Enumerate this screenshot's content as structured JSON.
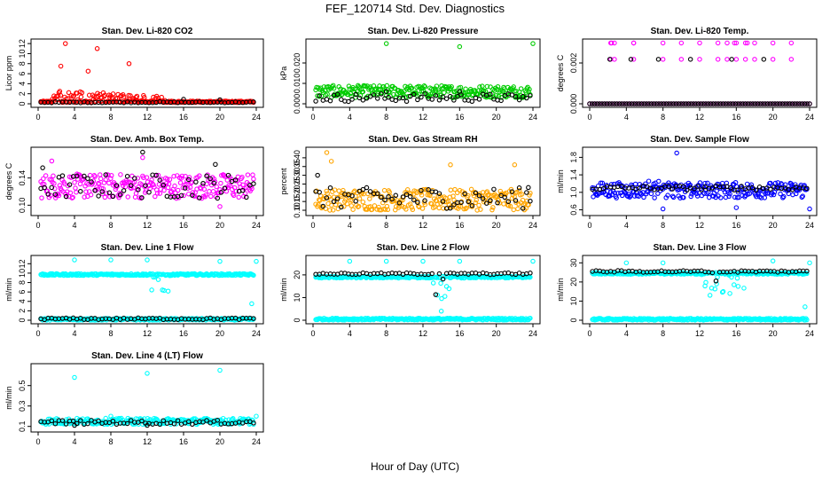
{
  "figure": {
    "title": "FEF_120714  Std. Dev. Diagnostics",
    "xlabel": "Hour of Day (UTC)"
  },
  "chart_data": [
    {
      "type": "scatter",
      "title": "Stan. Dev. Li-820 CO2",
      "xlabel": "",
      "ylabel": "Licor ppm",
      "xlim": [
        0,
        24
      ],
      "ylim": [
        0,
        12.2
      ],
      "xticks": [
        "0",
        "4",
        "8",
        "12",
        "16",
        "20",
        "24"
      ],
      "yticks": [
        "0",
        "2",
        "4",
        "6",
        "8",
        "10",
        "12"
      ],
      "series": [
        {
          "color": "#ff0000",
          "base": 0.4,
          "spread": 0.15,
          "bump": {
            "from": 1.5,
            "to": 14,
            "level": 2.0,
            "scatter": 2.5
          },
          "outliers": [
            [
              3,
              12
            ],
            [
              6.5,
              11
            ],
            [
              2.5,
              7.5
            ],
            [
              10,
              8
            ],
            [
              5.5,
              6.5
            ]
          ]
        },
        {
          "color": "#000000",
          "base": 0.3,
          "spread": 0.1,
          "outliers": [
            [
              16,
              0.9
            ],
            [
              20,
              0.8
            ]
          ]
        }
      ]
    },
    {
      "type": "scatter",
      "title": "Stan. Dev. Li-820 Pressure",
      "xlabel": "",
      "ylabel": "kPa",
      "xlim": [
        0,
        24
      ],
      "ylim": [
        0,
        0.03
      ],
      "xticks": [
        "0",
        "4",
        "8",
        "12",
        "16",
        "20",
        "24"
      ],
      "yticks": [
        "0.000",
        "0.010",
        "0.020"
      ],
      "series": [
        {
          "color": "#00cc00",
          "base": 0.006,
          "spread": 0.003,
          "outliers": [
            [
              8,
              0.0295
            ],
            [
              16,
              0.028
            ],
            [
              24,
              0.0295
            ]
          ]
        },
        {
          "color": "#000000",
          "base": 0.003,
          "spread": 0.002,
          "outliers": [
            [
              8,
              0.006
            ],
            [
              16,
              0.006
            ]
          ]
        }
      ]
    },
    {
      "type": "scatter",
      "title": "Stan. Dev. Li-820 Temp.",
      "xlabel": "",
      "ylabel": "degrees C",
      "xlim": [
        0,
        24
      ],
      "ylim": [
        0,
        0.003
      ],
      "xticks": [
        "0",
        "4",
        "8",
        "12",
        "16",
        "20",
        "24"
      ],
      "yticks": [
        "0.000",
        "0.002"
      ],
      "series": [
        {
          "color": "#ff00ff",
          "levels": [
            0,
            0.00218,
            0.00298
          ],
          "points_x": [
            2.3,
            2.7,
            4.8,
            8,
            10,
            12,
            14,
            15,
            16,
            17,
            18,
            20,
            22
          ],
          "outliers": [
            [
              2.4,
              0.00298
            ],
            [
              4.8,
              0.00298
            ],
            [
              15.8,
              0.00298
            ],
            [
              17.2,
              0.00298
            ]
          ]
        },
        {
          "color": "#000000",
          "levels": [
            0,
            0.00218
          ],
          "points_x": [
            2.2,
            4.5,
            7.5,
            11,
            15.5,
            19
          ],
          "outliers": []
        }
      ]
    },
    {
      "type": "scatter",
      "title": "Stan. Dev. Amb. Box Temp.",
      "xlabel": "",
      "ylabel": "degrees C",
      "xlim": [
        0,
        24
      ],
      "ylim": [
        0.09,
        0.18
      ],
      "xticks": [
        "0",
        "4",
        "8",
        "12",
        "16",
        "20",
        "24"
      ],
      "yticks": [
        "0.10",
        "0.14"
      ],
      "series": [
        {
          "color": "#ff00ff",
          "base": 0.128,
          "spread": 0.018,
          "outliers": [
            [
              11.5,
              0.17
            ],
            [
              1.5,
              0.165
            ],
            [
              20,
              0.098
            ]
          ]
        },
        {
          "color": "#000000",
          "base": 0.128,
          "spread": 0.018,
          "outliers": [
            [
              11.5,
              0.178
            ],
            [
              19.5,
              0.16
            ],
            [
              0.5,
              0.155
            ]
          ]
        }
      ]
    },
    {
      "type": "scatter",
      "title": "Stan. Dev. Gas Stream RH",
      "xlabel": "",
      "ylabel": "percent",
      "xlim": [
        0,
        24
      ],
      "ylim": [
        0.09,
        0.44
      ],
      "xticks": [
        "0",
        "4",
        "8",
        "12",
        "16",
        "20",
        "24"
      ],
      "yticks": [
        "0.10",
        "0.15",
        "0.20",
        "0.25",
        "0.30",
        "0.35",
        "0.40"
      ],
      "series": [
        {
          "color": "#ffa500",
          "base": 0.16,
          "spread": 0.06,
          "outliers": [
            [
              1.5,
              0.43
            ],
            [
              2,
              0.38
            ],
            [
              15,
              0.36
            ],
            [
              22,
              0.36
            ]
          ]
        },
        {
          "color": "#000000",
          "base": 0.17,
          "spread": 0.06,
          "outliers": [
            [
              0.5,
              0.3
            ],
            [
              23.5,
              0.23
            ]
          ]
        }
      ]
    },
    {
      "type": "scatter",
      "title": "Stan. Dev. Sample Flow",
      "xlabel": "",
      "ylabel": "ml/min",
      "xlim": [
        0,
        24
      ],
      "ylim": [
        0.55,
        1.95
      ],
      "xticks": [
        "0",
        "4",
        "8",
        "12",
        "16",
        "20",
        "24"
      ],
      "yticks": [
        "0.6",
        "1.0",
        "1.4",
        "1.8"
      ],
      "series": [
        {
          "color": "#0000ff",
          "base": 1.05,
          "spread": 0.18,
          "bump": {
            "from": 6,
            "to": 11,
            "level": 1.45,
            "scatter": 0.25
          },
          "outliers": [
            [
              9.5,
              1.9
            ],
            [
              8,
              0.62
            ],
            [
              24,
              0.62
            ],
            [
              16,
              0.65
            ]
          ]
        },
        {
          "color": "#000000",
          "base": 1.1,
          "spread": 0.05,
          "outliers": []
        }
      ]
    },
    {
      "type": "scatter",
      "title": "Stan. Dev. Line 1 Flow",
      "xlabel": "",
      "ylabel": "ml/min",
      "xlim": [
        0,
        24
      ],
      "ylim": [
        0,
        13
      ],
      "xticks": [
        "0",
        "4",
        "8",
        "12",
        "16",
        "20",
        "24"
      ],
      "yticks": [
        "0",
        "2",
        "4",
        "6",
        "8",
        "10",
        "12"
      ],
      "series": [
        {
          "color": "#00ffff",
          "levels": [
            9.7,
            0.2
          ],
          "dip": {
            "from": 12,
            "to": 15,
            "level": 6
          },
          "outliers": [
            [
              4,
              12.8
            ],
            [
              8,
              12.8
            ],
            [
              12,
              12.8
            ],
            [
              20,
              12.5
            ],
            [
              24,
              12.5
            ],
            [
              23.5,
              3.5
            ]
          ]
        },
        {
          "color": "#000000",
          "levels": [
            0.3
          ],
          "outliers": []
        }
      ]
    },
    {
      "type": "scatter",
      "title": "Stan. Dev. Line 2 Flow",
      "xlabel": "",
      "ylabel": "ml/min",
      "xlim": [
        0,
        24
      ],
      "ylim": [
        0,
        27
      ],
      "xticks": [
        "0",
        "4",
        "8",
        "12",
        "16",
        "20",
        "24"
      ],
      "yticks": [
        "0",
        "10",
        "20"
      ],
      "series": [
        {
          "color": "#00ffff",
          "levels": [
            19,
            0.5
          ],
          "dip": {
            "from": 12,
            "to": 15,
            "level": 8
          },
          "outliers": [
            [
              4,
              26
            ],
            [
              8,
              26
            ],
            [
              12,
              26
            ],
            [
              16,
              26
            ],
            [
              24,
              26
            ],
            [
              14,
              4
            ]
          ]
        },
        {
          "color": "#000000",
          "levels": [
            20.5
          ],
          "dip": {
            "from": 13,
            "to": 14.5,
            "level": 7
          },
          "outliers": []
        }
      ]
    },
    {
      "type": "scatter",
      "title": "Stan. Dev. Line 3 Flow",
      "xlabel": "",
      "ylabel": "ml/min",
      "xlim": [
        0,
        24
      ],
      "ylim": [
        0,
        32
      ],
      "xticks": [
        "0",
        "4",
        "8",
        "12",
        "16",
        "20",
        "24"
      ],
      "yticks": [
        "0",
        "10",
        "20",
        "30"
      ],
      "series": [
        {
          "color": "#00ffff",
          "levels": [
            24.5,
            0.5
          ],
          "dip": {
            "from": 12,
            "to": 17,
            "level": 13
          },
          "outliers": [
            [
              4,
              30
            ],
            [
              8,
              30
            ],
            [
              20,
              31
            ],
            [
              24,
              30
            ],
            [
              23.5,
              7
            ]
          ]
        },
        {
          "color": "#000000",
          "levels": [
            25.5
          ],
          "dip": {
            "from": 13,
            "to": 15,
            "level": 12
          },
          "outliers": []
        }
      ]
    },
    {
      "type": "scatter",
      "title": "Stan. Dev. Line 4 (LT) Flow",
      "xlabel": "",
      "ylabel": "ml/min",
      "xlim": [
        0,
        24
      ],
      "ylim": [
        0.08,
        0.68
      ],
      "xticks": [
        "0",
        "4",
        "8",
        "12",
        "16",
        "20",
        "24"
      ],
      "yticks": [
        "0.1",
        "0.3",
        "0.5"
      ],
      "series": [
        {
          "color": "#00ffff",
          "base": 0.15,
          "spread": 0.03,
          "outliers": [
            [
              4,
              0.58
            ],
            [
              12,
              0.62
            ],
            [
              20,
              0.65
            ],
            [
              8,
              0.2
            ],
            [
              24,
              0.2
            ]
          ]
        },
        {
          "color": "#000000",
          "base": 0.14,
          "spread": 0.02,
          "outliers": [
            [
              4,
              0.11
            ],
            [
              12,
              0.11
            ]
          ]
        }
      ]
    }
  ]
}
